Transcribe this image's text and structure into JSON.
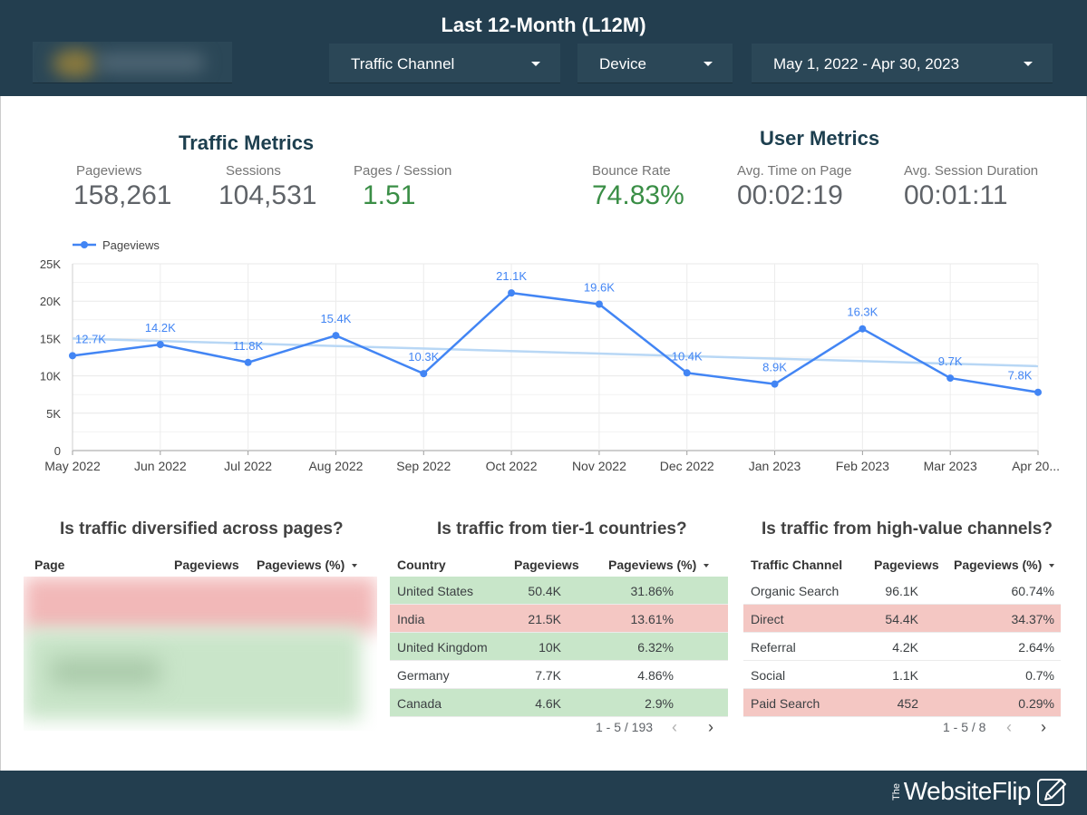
{
  "header": {
    "title": "Last 12-Month (L12M)",
    "filters": {
      "channel": "Traffic Channel",
      "device": "Device",
      "date_range": "May 1, 2022 - Apr 30, 2023"
    }
  },
  "traffic_metrics": {
    "title": "Traffic Metrics",
    "pageviews": {
      "label": "Pageviews",
      "value": "158,261"
    },
    "sessions": {
      "label": "Sessions",
      "value": "104,531"
    },
    "pages_per_session": {
      "label": "Pages / Session",
      "value": "1.51"
    }
  },
  "user_metrics": {
    "title": "User Metrics",
    "bounce_rate": {
      "label": "Bounce Rate",
      "value": "74.83%"
    },
    "avg_time_on_page": {
      "label": "Avg. Time on Page",
      "value": "00:02:19"
    },
    "avg_session_duration": {
      "label": "Avg. Session Duration",
      "value": "00:01:11"
    }
  },
  "chart_data": {
    "type": "line",
    "title": "",
    "xlabel": "",
    "ylabel": "",
    "categories": [
      "May 2022",
      "Jun 2022",
      "Jul 2022",
      "Aug 2022",
      "Sep 2022",
      "Oct 2022",
      "Nov 2022",
      "Dec 2022",
      "Jan 2023",
      "Feb 2023",
      "Mar 2023",
      "Apr 20..."
    ],
    "series": [
      {
        "name": "Pageviews",
        "values": [
          12700,
          14200,
          11800,
          15400,
          10300,
          21100,
          19600,
          10400,
          8900,
          16300,
          9700,
          7800
        ],
        "labels": [
          "12.7K",
          "14.2K",
          "11.8K",
          "15.4K",
          "10.3K",
          "21.1K",
          "19.6K",
          "10.4K",
          "8.9K",
          "16.3K",
          "9.7K",
          "7.8K"
        ],
        "color": "#4285f4"
      }
    ],
    "trendline": {
      "start": 15000,
      "end": 11300,
      "color": "#b8d7f5"
    },
    "yticks": [
      "0",
      "5K",
      "10K",
      "15K",
      "20K",
      "25K"
    ],
    "ylim": [
      0,
      25000
    ],
    "grid": true,
    "legend": "top-left"
  },
  "tables": {
    "pages": {
      "title": "Is traffic diversified across pages?",
      "headers": [
        "Page",
        "Pageviews",
        "Pageviews (%)"
      ]
    },
    "countries": {
      "title": "Is traffic from tier-1 countries?",
      "headers": [
        "Country",
        "Pageviews",
        "Pageviews (%)"
      ],
      "rows": [
        {
          "name": "United States",
          "pageviews": "50.4K",
          "pct": "31.86%",
          "highlight": "green"
        },
        {
          "name": "India",
          "pageviews": "21.5K",
          "pct": "13.61%",
          "highlight": "red"
        },
        {
          "name": "United Kingdom",
          "pageviews": "10K",
          "pct": "6.32%",
          "highlight": "green"
        },
        {
          "name": "Germany",
          "pageviews": "7.7K",
          "pct": "4.86%",
          "highlight": "none"
        },
        {
          "name": "Canada",
          "pageviews": "4.6K",
          "pct": "2.9%",
          "highlight": "green"
        }
      ],
      "pager": "1 - 5 / 193"
    },
    "channels": {
      "title": "Is traffic from high-value channels?",
      "headers": [
        "Traffic Channel",
        "Pageviews",
        "Pageviews (%)"
      ],
      "rows": [
        {
          "name": "Organic Search",
          "pageviews": "96.1K",
          "pct": "60.74%",
          "highlight": "none"
        },
        {
          "name": "Direct",
          "pageviews": "54.4K",
          "pct": "34.37%",
          "highlight": "red"
        },
        {
          "name": "Referral",
          "pageviews": "4.2K",
          "pct": "2.64%",
          "highlight": "none"
        },
        {
          "name": "Social",
          "pageviews": "1.1K",
          "pct": "0.7%",
          "highlight": "none"
        },
        {
          "name": "Paid Search",
          "pageviews": "452",
          "pct": "0.29%",
          "highlight": "red"
        }
      ],
      "pager": "1 - 5 / 8"
    }
  },
  "colors": {
    "header_bg": "#233e4f",
    "highlight_green": "#c8e6c9",
    "highlight_red": "#f4c7c3",
    "metric_green": "#3a8e46"
  },
  "footer": {
    "brand_the": "The",
    "brand_name": "WebsiteFlip",
    "brand_icon": "pen-in-box-icon"
  }
}
